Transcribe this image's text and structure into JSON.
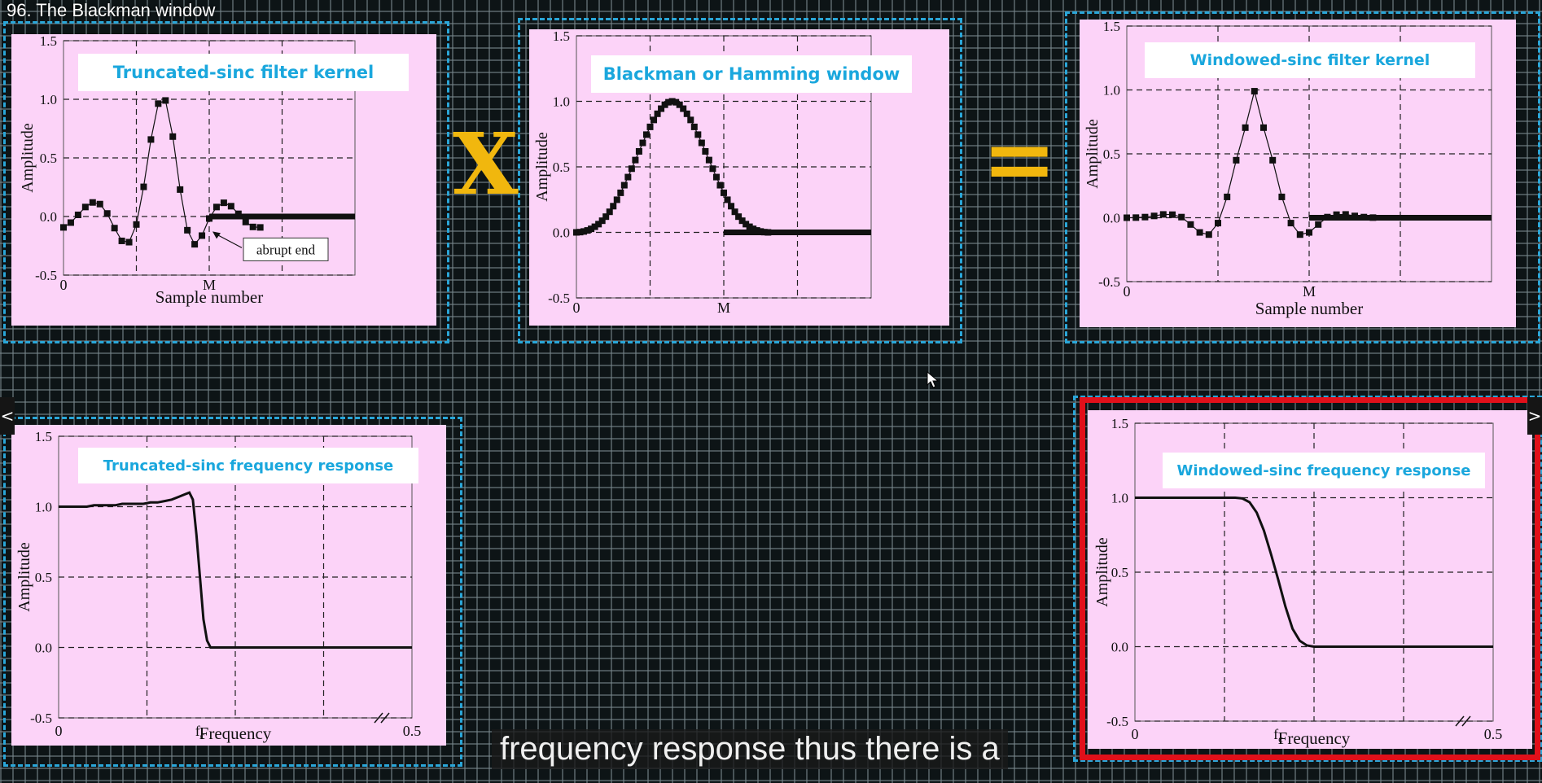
{
  "video": {
    "title": "96. The Blackman window"
  },
  "operators": {
    "multiply": "X",
    "equals": "="
  },
  "subtitle": "frequency response thus there is a",
  "controls": {
    "prev": "<",
    "next": ">"
  },
  "colors": {
    "panel_bg": "#fcd3f8",
    "title_text": "#1aa7dd",
    "frame": "#2aa6d8",
    "highlight": "#e0101a",
    "operator": "#f1b70e"
  },
  "chart_data": [
    {
      "id": "kernel",
      "type": "scatter",
      "title": "Truncated-sinc filter kernel",
      "xlabel": "Sample number",
      "ylabel": "Amplitude",
      "x_ticks": [
        {
          "v": 0,
          "label": "0"
        },
        {
          "v": 1,
          "label": "M"
        }
      ],
      "xlim": [
        0,
        2.0
      ],
      "ylim": [
        -0.5,
        1.5
      ],
      "y_ticks": [
        "-0.5",
        "0.0",
        "0.5",
        "1.0",
        "1.5"
      ],
      "grid": true,
      "annotation": "abrupt end",
      "points": [
        [
          0.0,
          -0.093
        ],
        [
          0.05,
          -0.052
        ],
        [
          0.1,
          0.014
        ],
        [
          0.15,
          0.081
        ],
        [
          0.2,
          0.12
        ],
        [
          0.25,
          0.106
        ],
        [
          0.3,
          0.026
        ],
        [
          0.35,
          -0.099
        ],
        [
          0.4,
          -0.208
        ],
        [
          0.45,
          -0.219
        ],
        [
          0.5,
          -0.068
        ],
        [
          0.55,
          0.253
        ],
        [
          0.6,
          0.657
        ],
        [
          0.65,
          0.963
        ],
        [
          0.7,
          0.99
        ],
        [
          0.75,
          0.682
        ],
        [
          0.8,
          0.23
        ],
        [
          0.85,
          -0.117
        ],
        [
          0.9,
          -0.237
        ],
        [
          0.95,
          -0.163
        ],
        [
          1.0,
          -0.017
        ],
        [
          1.05,
          0.081
        ],
        [
          1.1,
          0.117
        ],
        [
          1.15,
          0.088
        ],
        [
          1.2,
          0.023
        ],
        [
          1.25,
          -0.047
        ],
        [
          1.3,
          -0.089
        ],
        [
          1.35,
          -0.093
        ]
      ],
      "tail": [
        [
          1.0,
          0.0
        ],
        [
          2.0,
          0.0
        ]
      ]
    },
    {
      "id": "window",
      "type": "scatter",
      "title": "Blackman or Hamming window",
      "xlabel": "",
      "ylabel": "Amplitude",
      "x_ticks": [
        {
          "v": 0,
          "label": "0"
        },
        {
          "v": 1,
          "label": "M"
        }
      ],
      "xlim": [
        0,
        2.0
      ],
      "ylim": [
        -0.5,
        1.5
      ],
      "y_ticks": [
        "-0.5",
        "0.0",
        "0.5",
        "1.0",
        "1.5"
      ],
      "grid": true,
      "points": [
        [
          0.0,
          0.0
        ],
        [
          0.025,
          0.002
        ],
        [
          0.05,
          0.007
        ],
        [
          0.075,
          0.015
        ],
        [
          0.1,
          0.027
        ],
        [
          0.125,
          0.043
        ],
        [
          0.15,
          0.063
        ],
        [
          0.175,
          0.089
        ],
        [
          0.2,
          0.12
        ],
        [
          0.225,
          0.157
        ],
        [
          0.25,
          0.2
        ],
        [
          0.275,
          0.249
        ],
        [
          0.3,
          0.302
        ],
        [
          0.325,
          0.36
        ],
        [
          0.35,
          0.422
        ],
        [
          0.375,
          0.486
        ],
        [
          0.4,
          0.552
        ],
        [
          0.425,
          0.618
        ],
        [
          0.45,
          0.683
        ],
        [
          0.475,
          0.746
        ],
        [
          0.5,
          0.805
        ],
        [
          0.525,
          0.858
        ],
        [
          0.55,
          0.905
        ],
        [
          0.575,
          0.944
        ],
        [
          0.6,
          0.974
        ],
        [
          0.625,
          0.993
        ],
        [
          0.65,
          1.0
        ],
        [
          0.675,
          0.993
        ],
        [
          0.7,
          0.974
        ],
        [
          0.725,
          0.944
        ],
        [
          0.75,
          0.905
        ],
        [
          0.775,
          0.858
        ],
        [
          0.8,
          0.805
        ],
        [
          0.825,
          0.746
        ],
        [
          0.85,
          0.683
        ],
        [
          0.875,
          0.618
        ],
        [
          0.9,
          0.552
        ],
        [
          0.925,
          0.486
        ],
        [
          0.95,
          0.422
        ],
        [
          0.975,
          0.36
        ],
        [
          1.0,
          0.302
        ],
        [
          1.025,
          0.249
        ],
        [
          1.05,
          0.2
        ],
        [
          1.075,
          0.157
        ],
        [
          1.1,
          0.12
        ],
        [
          1.125,
          0.089
        ],
        [
          1.15,
          0.063
        ],
        [
          1.175,
          0.043
        ],
        [
          1.2,
          0.027
        ],
        [
          1.225,
          0.015
        ],
        [
          1.25,
          0.007
        ],
        [
          1.275,
          0.002
        ],
        [
          1.3,
          0.0
        ]
      ],
      "tail": [
        [
          1.0,
          0.0
        ],
        [
          2.0,
          0.0
        ]
      ]
    },
    {
      "id": "windowed_kernel",
      "type": "scatter",
      "title": "Windowed-sinc filter kernel",
      "xlabel": "Sample number",
      "ylabel": "Amplitude",
      "x_ticks": [
        {
          "v": 0,
          "label": "0"
        },
        {
          "v": 1,
          "label": "M"
        }
      ],
      "xlim": [
        0,
        2.0
      ],
      "ylim": [
        -0.5,
        1.5
      ],
      "y_ticks": [
        "-0.5",
        "0.0",
        "0.5",
        "1.0",
        "1.5"
      ],
      "grid": true,
      "points": [
        [
          0.0,
          0.0
        ],
        [
          0.05,
          0.001
        ],
        [
          0.1,
          0.005
        ],
        [
          0.15,
          0.014
        ],
        [
          0.2,
          0.026
        ],
        [
          0.25,
          0.024
        ],
        [
          0.3,
          0.005
        ],
        [
          0.35,
          -0.053
        ],
        [
          0.4,
          -0.115
        ],
        [
          0.45,
          -0.132
        ],
        [
          0.5,
          -0.042
        ],
        [
          0.55,
          0.163
        ],
        [
          0.6,
          0.45
        ],
        [
          0.65,
          0.705
        ],
        [
          0.7,
          0.99
        ],
        [
          0.75,
          0.705
        ],
        [
          0.8,
          0.45
        ],
        [
          0.85,
          0.163
        ],
        [
          0.9,
          -0.042
        ],
        [
          0.95,
          -0.132
        ],
        [
          1.0,
          -0.115
        ],
        [
          1.05,
          -0.053
        ],
        [
          1.1,
          0.005
        ],
        [
          1.15,
          0.024
        ],
        [
          1.2,
          0.026
        ],
        [
          1.25,
          0.014
        ],
        [
          1.3,
          0.005
        ],
        [
          1.35,
          0.001
        ]
      ],
      "tail": [
        [
          1.0,
          0.0
        ],
        [
          2.0,
          0.0
        ]
      ]
    },
    {
      "id": "trunc_freq",
      "type": "line",
      "title": "Truncated-sinc frequency response",
      "xlabel": "Frequency",
      "ylabel": "Amplitude",
      "x_ticks": [
        {
          "v": 0,
          "label": "0"
        },
        {
          "v": 0.2,
          "label": "fc"
        },
        {
          "v": 0.5,
          "label": "0.5"
        }
      ],
      "xlim": [
        0,
        0.5
      ],
      "ylim": [
        -0.5,
        1.5
      ],
      "y_ticks": [
        "-0.5",
        "0.0",
        "0.5",
        "1.0",
        "1.5"
      ],
      "grid": true,
      "points": [
        [
          0.0,
          1.0
        ],
        [
          0.01,
          1.0
        ],
        [
          0.02,
          1.0
        ],
        [
          0.03,
          1.0
        ],
        [
          0.04,
          1.0
        ],
        [
          0.05,
          1.01
        ],
        [
          0.06,
          1.01
        ],
        [
          0.07,
          1.01
        ],
        [
          0.08,
          1.01
        ],
        [
          0.09,
          1.02
        ],
        [
          0.1,
          1.02
        ],
        [
          0.11,
          1.02
        ],
        [
          0.12,
          1.02
        ],
        [
          0.13,
          1.03
        ],
        [
          0.14,
          1.03
        ],
        [
          0.15,
          1.04
        ],
        [
          0.16,
          1.05
        ],
        [
          0.17,
          1.07
        ],
        [
          0.18,
          1.09
        ],
        [
          0.185,
          1.1
        ],
        [
          0.19,
          1.05
        ],
        [
          0.195,
          0.8
        ],
        [
          0.2,
          0.5
        ],
        [
          0.205,
          0.2
        ],
        [
          0.21,
          0.05
        ],
        [
          0.215,
          0.0
        ],
        [
          0.22,
          0.0
        ],
        [
          0.23,
          0.0
        ],
        [
          0.24,
          0.0
        ],
        [
          0.25,
          0.0
        ],
        [
          0.26,
          0.0
        ],
        [
          0.27,
          0.0
        ],
        [
          0.28,
          0.0
        ],
        [
          0.29,
          0.0
        ],
        [
          0.3,
          0.0
        ],
        [
          0.32,
          0.0
        ],
        [
          0.34,
          0.0
        ],
        [
          0.36,
          0.0
        ],
        [
          0.38,
          0.0
        ],
        [
          0.4,
          0.0
        ],
        [
          0.42,
          0.0
        ],
        [
          0.44,
          0.0
        ],
        [
          0.46,
          0.0
        ],
        [
          0.48,
          0.0
        ],
        [
          0.5,
          0.0
        ]
      ]
    },
    {
      "id": "win_freq",
      "type": "line",
      "title": "Windowed-sinc frequency response",
      "xlabel": "Frequency",
      "ylabel": "Amplitude",
      "x_ticks": [
        {
          "v": 0,
          "label": "0"
        },
        {
          "v": 0.2,
          "label": "fc"
        },
        {
          "v": 0.5,
          "label": "0.5"
        }
      ],
      "xlim": [
        0,
        0.5
      ],
      "ylim": [
        -0.5,
        1.5
      ],
      "y_ticks": [
        "-0.5",
        "0.0",
        "0.5",
        "1.0",
        "1.5"
      ],
      "grid": true,
      "points": [
        [
          0.0,
          1.0
        ],
        [
          0.05,
          1.0
        ],
        [
          0.1,
          1.0
        ],
        [
          0.14,
          1.0
        ],
        [
          0.15,
          0.995
        ],
        [
          0.16,
          0.97
        ],
        [
          0.17,
          0.9
        ],
        [
          0.18,
          0.78
        ],
        [
          0.19,
          0.62
        ],
        [
          0.2,
          0.45
        ],
        [
          0.21,
          0.27
        ],
        [
          0.22,
          0.12
        ],
        [
          0.23,
          0.04
        ],
        [
          0.24,
          0.008
        ],
        [
          0.25,
          0.0
        ],
        [
          0.3,
          0.0
        ],
        [
          0.35,
          0.0
        ],
        [
          0.4,
          0.0
        ],
        [
          0.45,
          0.0
        ],
        [
          0.5,
          0.0
        ]
      ]
    }
  ]
}
